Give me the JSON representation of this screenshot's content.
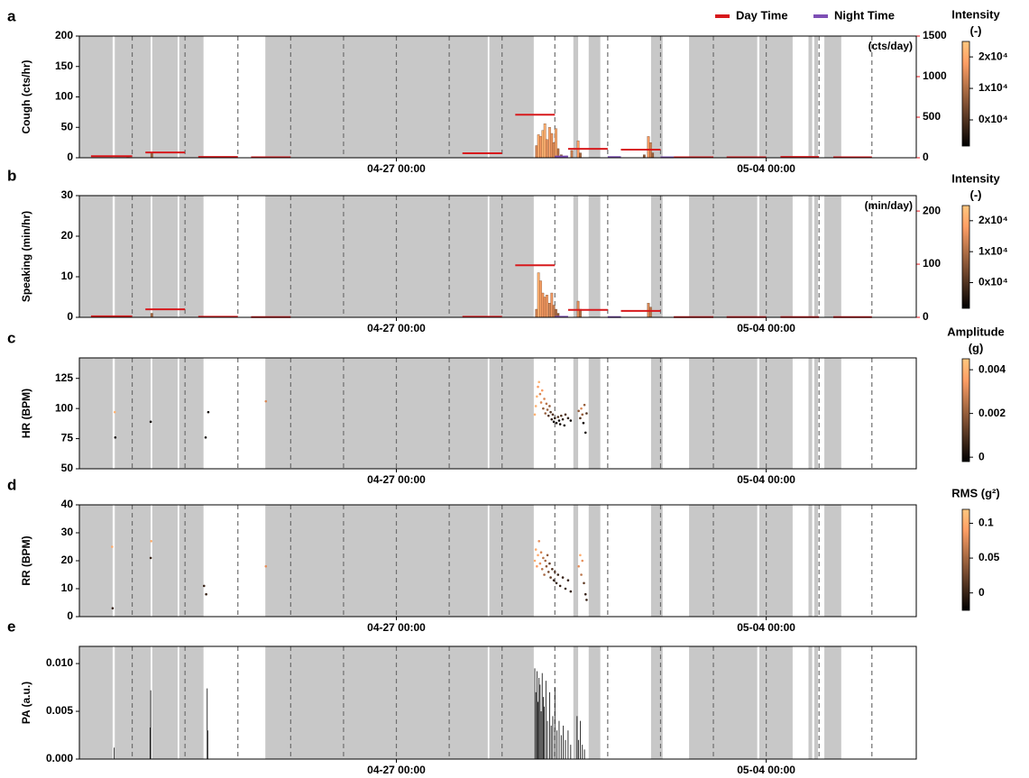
{
  "x_axis": {
    "xlim": [
      0,
      15.84
    ],
    "xticks": [
      {
        "value": 6,
        "label": "04-27 00:00"
      },
      {
        "value": 13,
        "label": "05-04 00:00"
      }
    ],
    "day_lines": [
      1,
      2,
      3,
      4,
      5,
      6,
      7,
      8,
      9,
      10,
      11,
      12,
      13,
      14,
      15
    ],
    "shaded": [
      [
        0,
        0.63
      ],
      [
        0.67,
        1.35
      ],
      [
        1.38,
        1.86
      ],
      [
        1.89,
        2.35
      ],
      [
        3.52,
        7.73
      ],
      [
        7.76,
        8.6
      ],
      [
        9.35,
        9.44
      ],
      [
        9.64,
        9.86
      ],
      [
        10.82,
        11.04
      ],
      [
        11.54,
        12.83
      ],
      [
        12.87,
        13.5
      ],
      [
        13.8,
        13.87
      ],
      [
        13.91,
        13.98
      ],
      [
        14.1,
        14.42
      ]
    ]
  },
  "chart_data": [
    {
      "type": "bar",
      "panel_label": "a",
      "ylabel": "Cough (cts/hr)",
      "ylim": [
        0,
        200
      ],
      "yticks": [
        0,
        50,
        100,
        150,
        200
      ],
      "y2lim": [
        0,
        1500
      ],
      "y2ticks": [
        0,
        500,
        1000,
        1500
      ],
      "y2_note": "(cts/day)",
      "y2_color": "#e8161b",
      "bars": {
        "x": [
          0.9,
          1.35,
          8.63,
          8.67,
          8.71,
          8.75,
          8.79,
          8.83,
          8.88,
          8.92,
          8.96,
          9.0,
          9.04,
          9.1,
          9.2,
          9.3,
          9.42,
          9.46,
          10.67,
          10.75,
          10.79,
          10.83
        ],
        "values": [
          3,
          8,
          20,
          38,
          35,
          45,
          56,
          30,
          50,
          40,
          25,
          48,
          15,
          5,
          3,
          12,
          28,
          8,
          5,
          35,
          25,
          8
        ],
        "intensity": [
          12000,
          8000,
          15000,
          20000,
          18000,
          22000,
          21000,
          17000,
          19000,
          16000,
          14000,
          20000,
          10000,
          6000,
          5000,
          12000,
          18000,
          9000,
          6000,
          17000,
          14000,
          8000
        ]
      },
      "series": [
        {
          "name": "Day Time",
          "color": "#d7191c",
          "axis": "y2",
          "x_start": [
            0.22,
            1.25,
            2.25,
            3.25,
            7.25,
            8.25,
            9.25,
            10.25,
            11.25,
            12.25,
            13.27,
            14.27
          ],
          "x_end": [
            1,
            2,
            3,
            4,
            8,
            9,
            10,
            11,
            12,
            13,
            14,
            15
          ],
          "values": [
            20,
            65,
            10,
            5,
            55,
            530,
            110,
            100,
            5,
            5,
            10,
            5
          ]
        },
        {
          "name": "Night Time",
          "color": "#7e4fb5",
          "axis": "y2",
          "x_start": [
            9.0,
            10.0,
            11.0
          ],
          "x_end": [
            9.25,
            10.25,
            11.25
          ],
          "values": [
            15,
            8,
            5
          ]
        }
      ],
      "colorbar": {
        "title": "Intensity",
        "unit": "(-)",
        "colormap": "copper",
        "clim": [
          -8300,
          24900
        ],
        "ticks": [
          {
            "value": 20000,
            "label": "2x10⁴"
          },
          {
            "value": 10000,
            "label": "1x10⁴"
          },
          {
            "value": 0,
            "label": "0x10⁴"
          }
        ]
      }
    },
    {
      "type": "bar",
      "panel_label": "b",
      "ylabel": "Speaking (min/hr)",
      "ylim": [
        0,
        30
      ],
      "yticks": [
        0,
        10,
        20,
        30
      ],
      "y2lim": [
        0,
        229
      ],
      "y2ticks": [
        0,
        100,
        200
      ],
      "y2_note": "(min/day)",
      "y2_color": "#e8161b",
      "bars": {
        "x": [
          1.35,
          8.63,
          8.67,
          8.71,
          8.75,
          8.79,
          8.83,
          8.88,
          8.92,
          8.96,
          9.0,
          9.04,
          9.42,
          9.46,
          10.75,
          10.79
        ],
        "values": [
          1,
          2,
          11,
          9,
          6,
          5,
          5.5,
          3.5,
          6,
          3,
          2,
          1,
          4,
          2,
          3.5,
          2.5
        ],
        "intensity": [
          9000,
          14000,
          21000,
          19000,
          17000,
          16000,
          18000,
          14000,
          17000,
          12000,
          10000,
          7000,
          15000,
          10000,
          14000,
          12000
        ]
      },
      "series": [
        {
          "name": "Day Time",
          "color": "#d7191c",
          "axis": "y2",
          "x_start": [
            0.22,
            1.25,
            2.25,
            3.25,
            7.25,
            8.25,
            9.25,
            10.25,
            11.25,
            12.25,
            13.27,
            14.27
          ],
          "x_end": [
            1,
            2,
            3,
            4,
            8,
            9,
            10,
            11,
            12,
            13,
            14,
            15
          ],
          "values": [
            2,
            15,
            1,
            0.5,
            1,
            98,
            14,
            12,
            0.5,
            0.5,
            0.5,
            0.5
          ]
        },
        {
          "name": "Night Time",
          "color": "#7e4fb5",
          "axis": "y2",
          "x_start": [
            9.0,
            10.0
          ],
          "x_end": [
            9.25,
            10.25
          ],
          "values": [
            1,
            0.5
          ]
        }
      ],
      "colorbar": {
        "title": "Intensity",
        "unit": "(-)",
        "colormap": "copper",
        "clim": [
          -8300,
          24900
        ],
        "ticks": [
          {
            "value": 20000,
            "label": "2x10⁴"
          },
          {
            "value": 10000,
            "label": "1x10⁴"
          },
          {
            "value": 0,
            "label": "0x10⁴"
          }
        ]
      }
    },
    {
      "type": "scatter",
      "panel_label": "c",
      "ylabel": "HR (BPM)",
      "ylim": [
        50,
        142
      ],
      "yticks": [
        50,
        75,
        100,
        125
      ],
      "x": [
        0.68,
        0.67,
        1.35,
        2.44,
        2.39,
        3.53,
        8.62,
        8.64,
        8.66,
        8.68,
        8.7,
        8.72,
        8.74,
        8.76,
        8.78,
        8.8,
        8.82,
        8.84,
        8.86,
        8.88,
        8.9,
        8.92,
        8.94,
        8.96,
        8.98,
        9.0,
        9.03,
        9.06,
        9.08,
        9.1,
        9.12,
        9.15,
        9.18,
        9.2,
        9.25,
        9.3,
        9.45,
        9.48,
        9.5,
        9.52,
        9.54,
        9.56,
        9.58,
        9.6
      ],
      "values": [
        76,
        97,
        89,
        97,
        76,
        106,
        95,
        102,
        110,
        118,
        122,
        112,
        105,
        115,
        100,
        108,
        96,
        104,
        99,
        94,
        102,
        97,
        91,
        95,
        89,
        92,
        88,
        93,
        90,
        87,
        94,
        91,
        86,
        95,
        92,
        90,
        98,
        92,
        100,
        95,
        88,
        103,
        80,
        96
      ],
      "color_values": [
        0,
        0.004,
        0,
        0,
        0,
        0.003,
        0.004,
        0.004,
        0.004,
        0.0035,
        0.004,
        0.003,
        0.003,
        0.0035,
        0.002,
        0.003,
        0.002,
        0.0025,
        0.002,
        0.001,
        0.002,
        0.001,
        0.0005,
        0.001,
        0,
        0.0005,
        0,
        0.001,
        0,
        0,
        0.001,
        0.0005,
        0,
        0.001,
        0.0005,
        0,
        0.002,
        0.001,
        0.003,
        0.002,
        0,
        0.002,
        0,
        0.001
      ],
      "colorbar": {
        "title": "Amplitude",
        "unit": "(g)",
        "colormap": "copper",
        "clim": [
          -0.0002,
          0.0045
        ],
        "ticks": [
          0.004,
          0.002,
          0
        ]
      }
    },
    {
      "type": "scatter",
      "panel_label": "d",
      "ylabel": "RR (BPM)",
      "ylim": [
        0,
        40
      ],
      "yticks": [
        0,
        10,
        20,
        30,
        40
      ],
      "x": [
        0.63,
        0.62,
        1.35,
        1.36,
        2.36,
        2.4,
        3.53,
        8.62,
        8.64,
        8.66,
        8.68,
        8.7,
        8.72,
        8.74,
        8.76,
        8.78,
        8.8,
        8.82,
        8.84,
        8.86,
        8.88,
        8.9,
        8.92,
        8.95,
        8.98,
        9.0,
        9.03,
        9.06,
        9.1,
        9.15,
        9.2,
        9.25,
        9.3,
        9.45,
        9.48,
        9.5,
        9.52,
        9.55,
        9.58,
        9.6
      ],
      "values": [
        3,
        25,
        21,
        27,
        11,
        8,
        18,
        20,
        24,
        18,
        22,
        27,
        19,
        23,
        17,
        21,
        15,
        20,
        18,
        22,
        16,
        19,
        14,
        17,
        13,
        16,
        12,
        15,
        11,
        14,
        10,
        13,
        9,
        18,
        22,
        15,
        20,
        12,
        8,
        6
      ],
      "color_values": [
        0,
        0.1,
        0,
        0.1,
        0,
        0,
        0.08,
        0.1,
        0.1,
        0.09,
        0.1,
        0.08,
        0.08,
        0.07,
        0.06,
        0.06,
        0.05,
        0.05,
        0.04,
        0.04,
        0.03,
        0.02,
        0.02,
        0.01,
        0,
        0.01,
        0,
        0,
        0,
        0,
        0,
        0,
        0,
        0.08,
        0.1,
        0.06,
        0.08,
        0.02,
        0,
        0
      ],
      "colorbar": {
        "title": "RMS (g²)",
        "colormap": "copper",
        "clim": [
          -0.025,
          0.12
        ],
        "ticks": [
          0.1,
          0.05,
          0
        ]
      }
    },
    {
      "type": "spike",
      "panel_label": "e",
      "ylabel": "PA (a.u.)",
      "ylim": [
        0,
        0.0118
      ],
      "yticks": [
        {
          "value": 0,
          "label": "0.000"
        },
        {
          "value": 0.005,
          "label": "0.005"
        },
        {
          "value": 0.01,
          "label": "0.010"
        }
      ],
      "color": "#000000",
      "x": [
        0.66,
        1.34,
        1.35,
        2.42,
        2.43,
        8.62,
        8.64,
        8.66,
        8.68,
        8.7,
        8.72,
        8.74,
        8.76,
        8.78,
        8.8,
        8.83,
        8.86,
        8.9,
        8.93,
        8.96,
        9.0,
        9.04,
        9.08,
        9.12,
        9.16,
        9.2,
        9.25,
        9.3,
        9.42,
        9.45,
        9.48,
        9.52,
        9.56
      ],
      "values": [
        0.0012,
        0.0033,
        0.0072,
        0.0074,
        0.003,
        0.0095,
        0.007,
        0.0092,
        0.006,
        0.0085,
        0.0078,
        0.005,
        0.009,
        0.0065,
        0.0055,
        0.0082,
        0.004,
        0.007,
        0.0035,
        0.0045,
        0.0075,
        0.003,
        0.004,
        0.0025,
        0.0035,
        0.002,
        0.003,
        0.0015,
        0.0045,
        0.002,
        0.004,
        0.0015,
        0.001
      ]
    }
  ]
}
